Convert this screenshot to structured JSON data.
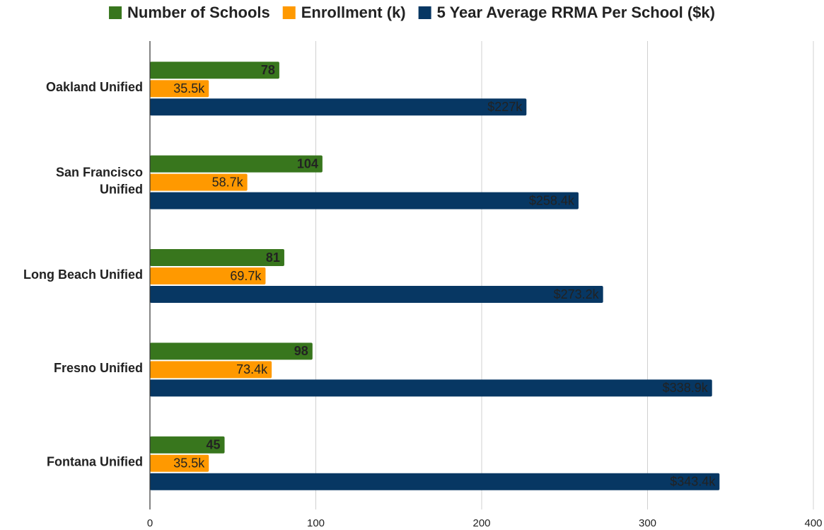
{
  "chart_data": {
    "type": "hbar",
    "categories": [
      "Oakland Unified",
      "San Francisco Unified",
      "Long Beach Unified",
      "Fresno Unified",
      "Fontana Unified"
    ],
    "series": [
      {
        "name": "Number of Schools",
        "color": "#38761d",
        "values": [
          78,
          104,
          81,
          98,
          45
        ]
      },
      {
        "name": "Enrollment (k)",
        "color": "#ff9900",
        "values": [
          35.5,
          58.7,
          69.7,
          73.4,
          35.5
        ],
        "value_labels": [
          "35.5k",
          "58.7k",
          "69.7k",
          "73.4k",
          "35.5k"
        ]
      },
      {
        "name": "5 Year Average RRMA Per School ($k)",
        "color": "#073763",
        "values": [
          227,
          258.4,
          273.2,
          338.9,
          343.4
        ],
        "value_labels": [
          "$227k",
          "$258.4k",
          "$273.2k",
          "$338.9k",
          "$343.4k"
        ]
      }
    ],
    "xlim": [
      0,
      400
    ],
    "xticks": [
      0,
      100,
      200,
      300,
      400
    ],
    "grid": true,
    "legend": "top"
  }
}
